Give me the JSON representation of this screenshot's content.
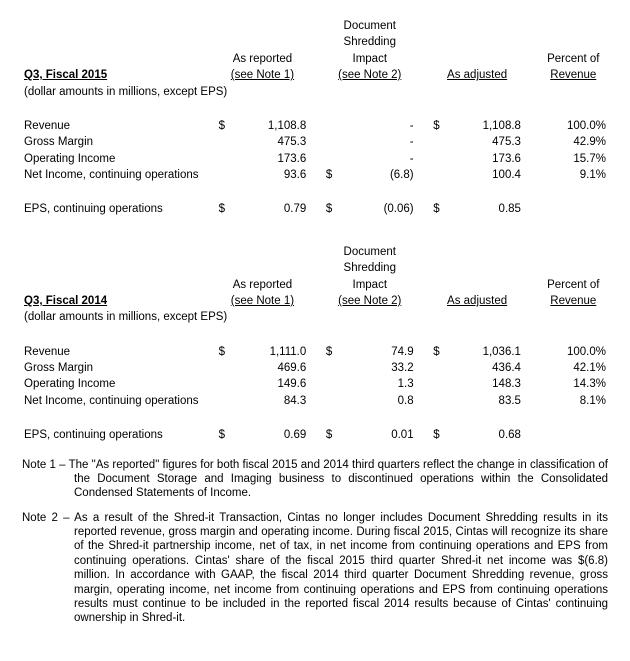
{
  "headers": {
    "as_reported": "As reported",
    "as_reported_note": "(see Note 1)",
    "shredding_l1": "Document",
    "shredding_l2": "Shredding",
    "shredding_l3": "Impact",
    "shredding_note": "(see Note 2)",
    "as_adjusted": "As adjusted",
    "pct_l1": "Percent of",
    "pct_l2": "Revenue"
  },
  "sections": [
    {
      "title": "Q3, Fiscal 2015",
      "subnote": "(dollar amounts in millions, except EPS)",
      "rows": [
        {
          "label": "Revenue",
          "rc": "$",
          "rv": "1,108.8",
          "sc": "",
          "sv": "-",
          "ac": "$",
          "av": "1,108.8",
          "pct": "100.0%"
        },
        {
          "label": "Gross Margin",
          "rc": "",
          "rv": "475.3",
          "sc": "",
          "sv": "-",
          "ac": "",
          "av": "475.3",
          "pct": "42.9%"
        },
        {
          "label": "Operating Income",
          "rc": "",
          "rv": "173.6",
          "sc": "",
          "sv": "-",
          "ac": "",
          "av": "173.6",
          "pct": "15.7%"
        },
        {
          "label": "Net Income, continuing operations",
          "rc": "",
          "rv": "93.6",
          "sc": "$",
          "sv": "(6.8)",
          "ac": "",
          "av": "100.4",
          "pct": "9.1%"
        }
      ],
      "eps": {
        "label": "EPS, continuing operations",
        "rc": "$",
        "rv": "0.79",
        "sc": "$",
        "sv": "(0.06)",
        "ac": "$",
        "av": "0.85",
        "pct": ""
      }
    },
    {
      "title": "Q3, Fiscal 2014",
      "subnote": "(dollar amounts in millions, except EPS)",
      "rows": [
        {
          "label": "Revenue",
          "rc": "$",
          "rv": "1,111.0",
          "sc": "$",
          "sv": "74.9",
          "ac": "$",
          "av": "1,036.1",
          "pct": "100.0%"
        },
        {
          "label": "Gross Margin",
          "rc": "",
          "rv": "469.6",
          "sc": "",
          "sv": "33.2",
          "ac": "",
          "av": "436.4",
          "pct": "42.1%"
        },
        {
          "label": "Operating Income",
          "rc": "",
          "rv": "149.6",
          "sc": "",
          "sv": "1.3",
          "ac": "",
          "av": "148.3",
          "pct": "14.3%"
        },
        {
          "label": "Net Income, continuing operations",
          "rc": "",
          "rv": "84.3",
          "sc": "",
          "sv": "0.8",
          "ac": "",
          "av": "83.5",
          "pct": "8.1%"
        }
      ],
      "eps": {
        "label": "EPS, continuing operations",
        "rc": "$",
        "rv": "0.69",
        "sc": "$",
        "sv": "0.01",
        "ac": "$",
        "av": "0.68",
        "pct": ""
      }
    }
  ],
  "notes": {
    "n1": "Note 1 – The \"As reported\" figures for both fiscal 2015 and 2014 third quarters reflect the change in classification of the Document Storage and Imaging business to discontinued operations within the Consolidated Condensed Statements of Income.",
    "n2": "Note 2 – As a result of the Shred-it Transaction, Cintas no longer includes Document Shredding results in its reported revenue, gross margin and operating income.  During fiscal 2015, Cintas will recognize its share of the Shred-it partnership income, net of tax, in net income from continuing operations and EPS from continuing operations.  Cintas' share of the fiscal 2015 third quarter Shred-it net income was $(6.8) million.  In accordance with GAAP, the fiscal 2014 third quarter Document Shredding revenue, gross margin, operating income, net income from continuing operations and EPS from continuing operations results must continue to be included in the reported fiscal 2014 results because of Cintas' continuing ownership in Shred-it."
  }
}
